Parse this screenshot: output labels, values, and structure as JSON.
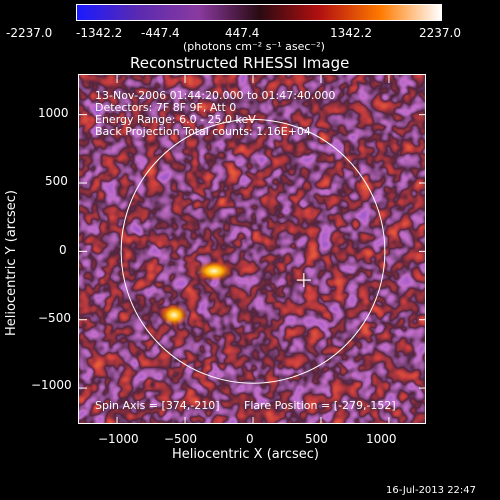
{
  "colorbar": {
    "ticks": [
      "-2237.0",
      "-1342.2",
      "-447.4",
      "447.4",
      "1342.2",
      "2237.0"
    ],
    "unit_label": "(photons cm⁻² s⁻¹ asec⁻²)",
    "colors": [
      "#1a1aff",
      "#5a2ab0",
      "#8a3aa0",
      "#2a0a12",
      "#b21010",
      "#ff7a00",
      "#ffffff"
    ]
  },
  "plot": {
    "title": "Reconstructed RHESSI Image",
    "xlabel": "Heliocentric X (arcsec)",
    "ylabel": "Heliocentric Y (arcsec)",
    "x_ticks": [
      "−1000",
      "−500",
      "0",
      "500",
      "1000"
    ],
    "y_ticks": [
      "1000",
      "500",
      "0",
      "−500",
      "−1000"
    ],
    "x_range": [
      -1280,
      1280
    ],
    "y_range": [
      -1270,
      1290
    ],
    "tick_values": [
      -1000,
      -500,
      0,
      500,
      1000
    ],
    "solar_limb_radius": 970,
    "crosshair_position": [
      374,
      -210
    ],
    "info_lines": [
      "13-Nov-2006 01:44:20.000 to 01:47:40.000",
      "Detectors: 7F 8F 9F, Att 0",
      "Energy Range: 6.0 - 25.0 keV",
      "Back Projection    Total counts: 1.16E+04"
    ],
    "spin_axis": "Spin Axis = [374,-210]",
    "flare_position": "Flare Position = [-279,-152]"
  },
  "timestamp": "16-Jul-2013 22:47"
}
